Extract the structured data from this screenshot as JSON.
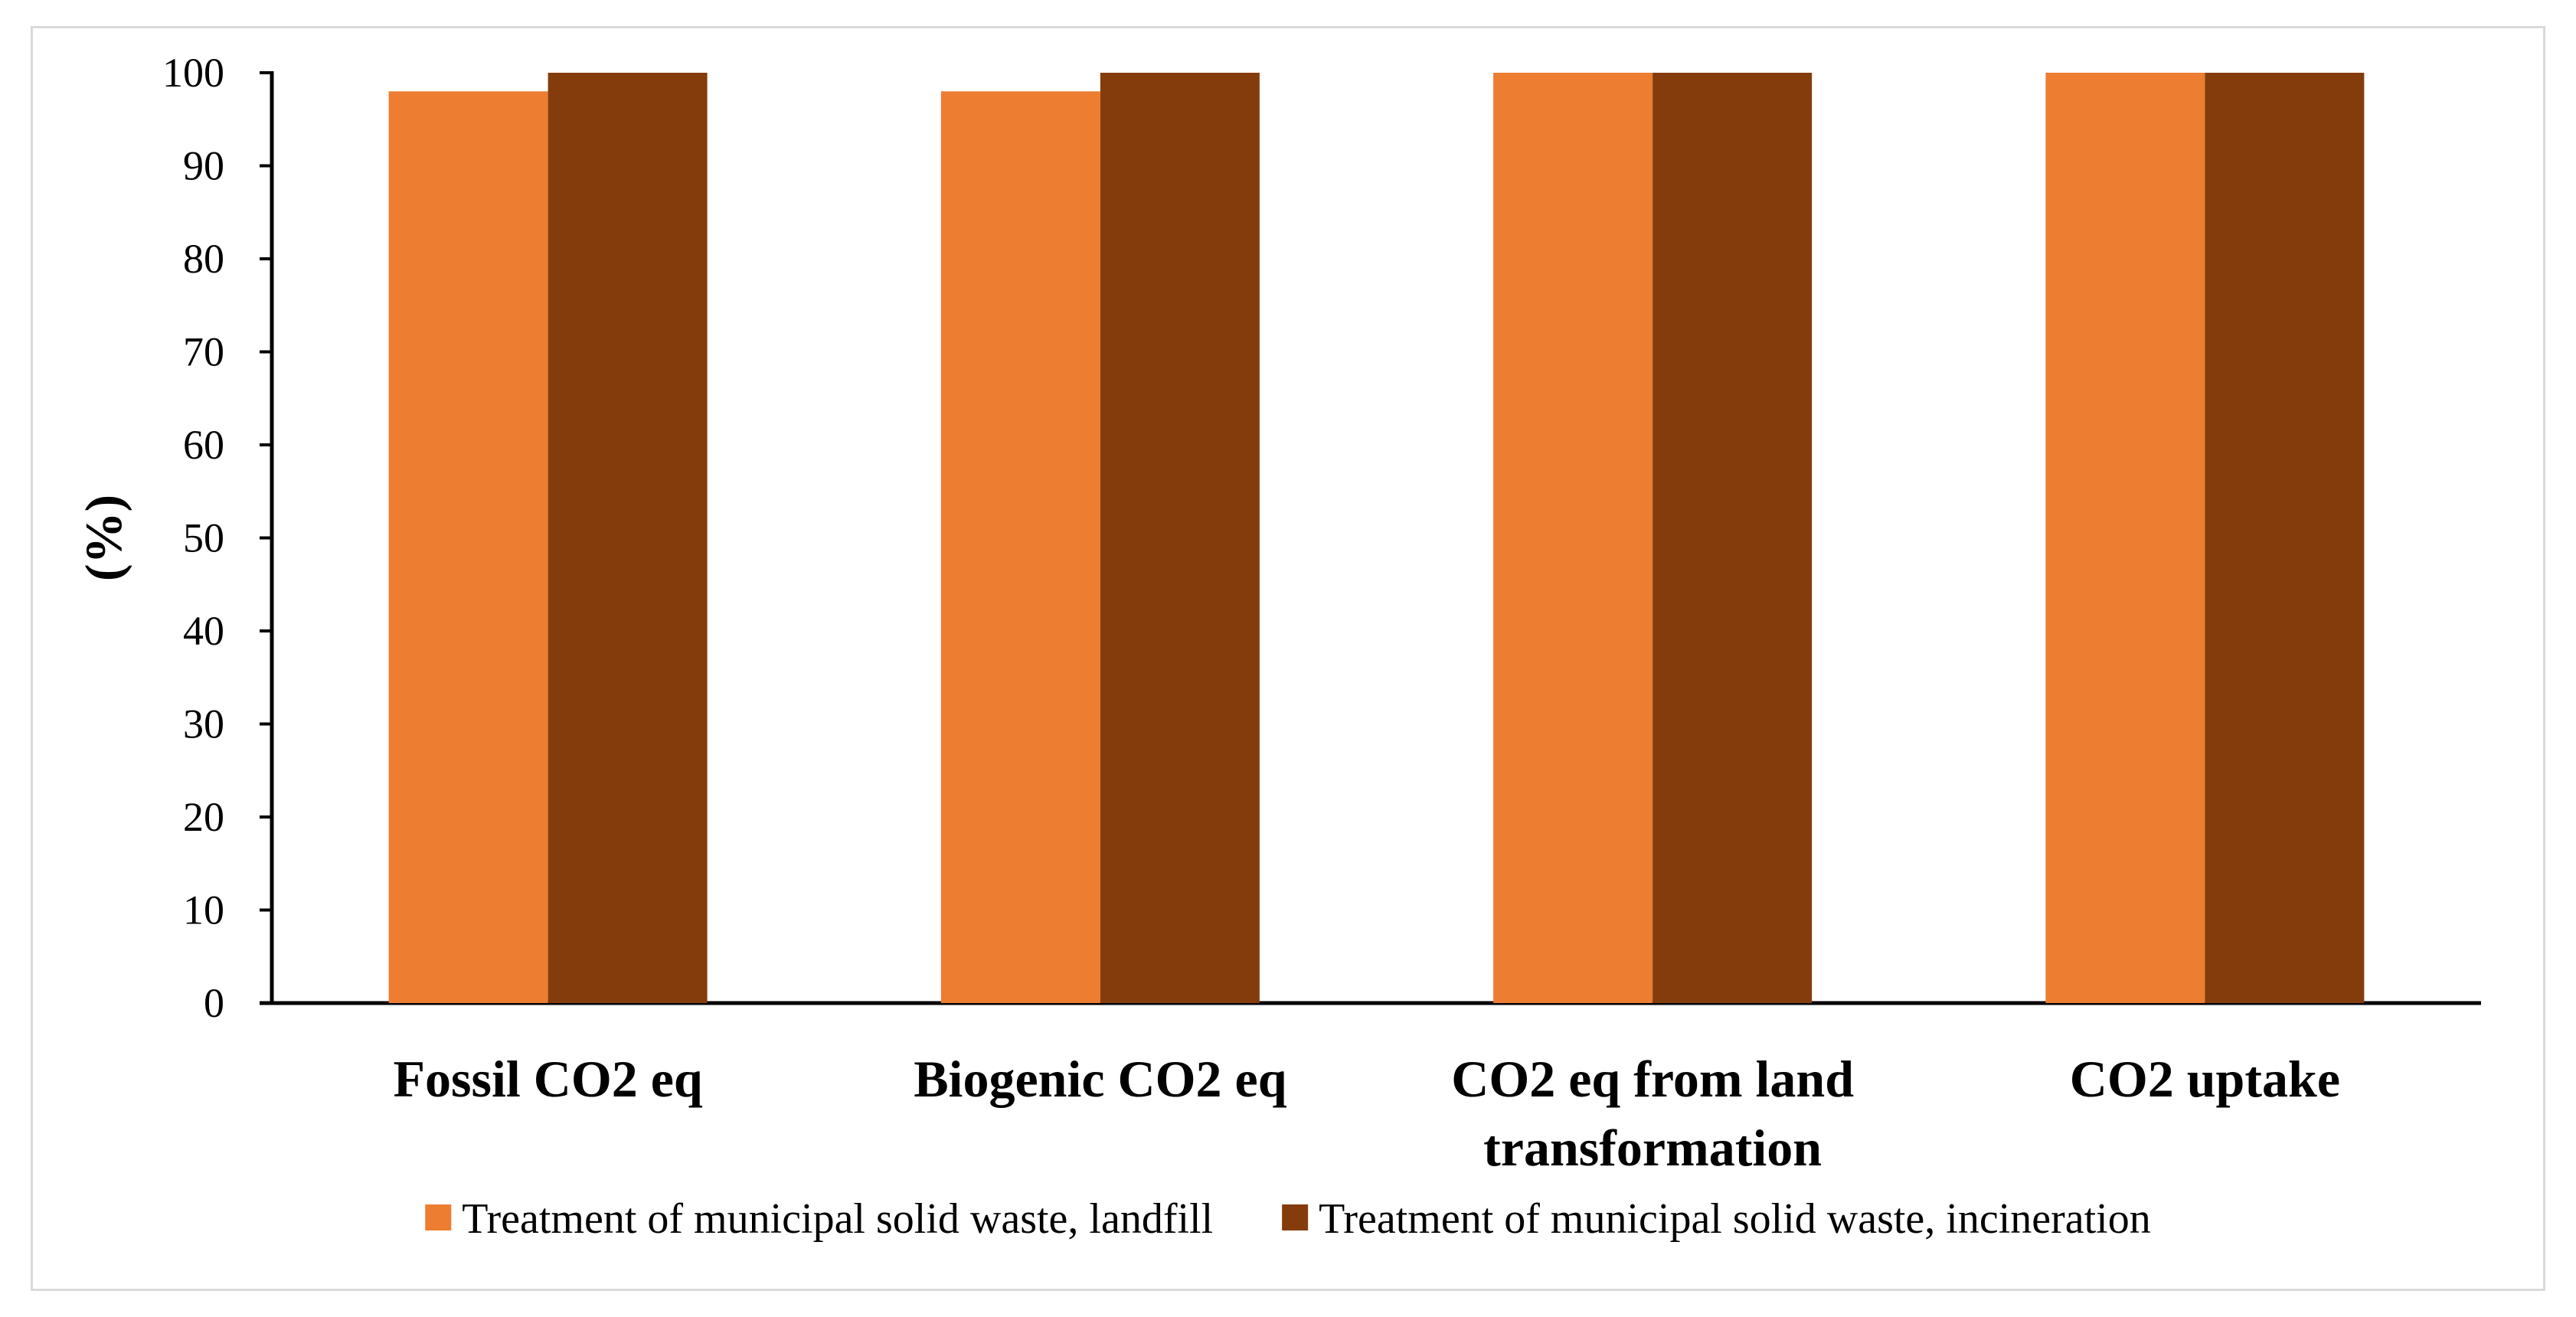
{
  "chart_data": {
    "type": "bar",
    "categories": [
      [
        "Fossil CO2 eq"
      ],
      [
        "Biogenic CO2 eq"
      ],
      [
        "CO2 eq from land",
        "transformation"
      ],
      [
        "CO2 uptake"
      ]
    ],
    "series": [
      {
        "name": "Treatment of municipal solid waste, landfill",
        "color": "#ED7D31",
        "values": [
          98,
          98,
          100,
          100
        ]
      },
      {
        "name": "Treatment of municipal solid waste, incineration",
        "color": "#843C0C",
        "values": [
          100,
          100,
          100,
          100
        ]
      }
    ],
    "ylabel": "(%)",
    "xlabel": "",
    "ylim": [
      0,
      100
    ],
    "yticks": [
      0,
      10,
      20,
      30,
      40,
      50,
      60,
      70,
      80,
      90,
      100
    ],
    "grid": false,
    "legend_position": "bottom"
  }
}
